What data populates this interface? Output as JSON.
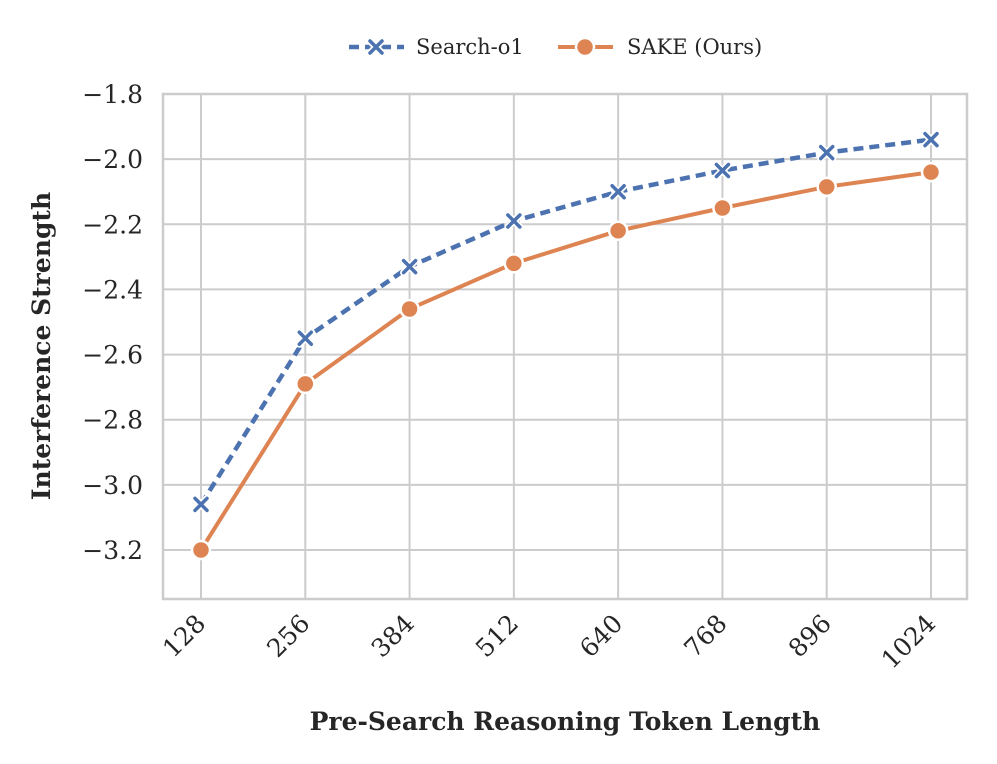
{
  "chart_data": {
    "type": "line",
    "x": [
      128,
      256,
      384,
      512,
      640,
      768,
      896,
      1024
    ],
    "categories": [
      "128",
      "256",
      "384",
      "512",
      "640",
      "768",
      "896",
      "1024"
    ],
    "xlabel": "Pre-Search Reasoning Token Length",
    "ylabel": "Interference Strength",
    "ylim": [
      -3.35,
      -1.8
    ],
    "yticks": [
      -1.8,
      -2.0,
      -2.2,
      -2.4,
      -2.6,
      -2.8,
      -3.0,
      -3.2
    ],
    "ytick_labels": [
      "−1.8",
      "−2.0",
      "−2.2",
      "−2.4",
      "−2.6",
      "−2.8",
      "−3.0",
      "−3.2"
    ],
    "grid": true,
    "legend_position": "top-center",
    "series": [
      {
        "name": "Search-o1",
        "values": [
          -3.06,
          -2.55,
          -2.33,
          -2.19,
          -2.1,
          -2.035,
          -1.98,
          -1.94
        ],
        "color": "#4c72b0",
        "linestyle": "dashed",
        "marker": "x"
      },
      {
        "name": "SAKE (Ours)",
        "values": [
          -3.2,
          -2.69,
          -2.46,
          -2.32,
          -2.22,
          -2.15,
          -2.085,
          -2.04
        ],
        "color": "#dd8452",
        "linestyle": "solid",
        "marker": "circle"
      }
    ]
  }
}
